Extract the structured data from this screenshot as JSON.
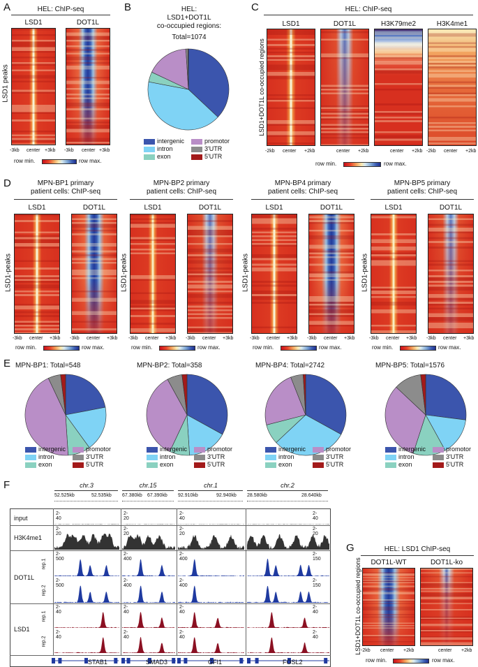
{
  "panel_labels": {
    "A": "A",
    "B": "B",
    "C": "C",
    "D": "D",
    "E": "E",
    "F": "F",
    "G": "G"
  },
  "common": {
    "row_min": "row min.",
    "row_max": "row max.",
    "tick_3kb_left": "-3kb",
    "tick_3kb_right": "+3kb",
    "tick_2kb_left": "-2kb",
    "tick_2kb_right": "+2kb",
    "center": "center",
    "lsd1": "LSD1",
    "dot1l": "DOT1L"
  },
  "legend": {
    "items": [
      {
        "label": "intergenic",
        "color": "#3b55ad"
      },
      {
        "label": "promotor",
        "color": "#b98ec7"
      },
      {
        "label": "intron",
        "color": "#7fd3f5"
      },
      {
        "label": "3'UTR",
        "color": "#8c8c8c"
      },
      {
        "label": "exon",
        "color": "#8ad1c0"
      },
      {
        "label": "5'UTR",
        "color": "#a31a1a"
      }
    ]
  },
  "panelA": {
    "title": "HEL: ChIP-seq",
    "ylabel": "LSD1 peaks"
  },
  "panelB": {
    "title_line1": "HEL:",
    "title_line2": "LSD1+DOT1L",
    "title_line3": "co-occupied regions:",
    "total": "Total=1074"
  },
  "panelC": {
    "title": "HEL: ChIP-seq",
    "ylabel": "LSD1+DOT1L co-occupied regions",
    "cols": [
      "LSD1",
      "DOT1L",
      "H3K79me2",
      "H3K4me1"
    ]
  },
  "panelD": {
    "ylabel": "LSD1-peaks",
    "groups": [
      {
        "line1": "MPN-BP1 primary",
        "line2": "patient cells: ChIP-seq"
      },
      {
        "line1": "MPN-BP2 primary",
        "line2": "patient cells: ChIP-seq"
      },
      {
        "line1": "MPN-BP4 primary",
        "line2": "patient cells: ChIP-seq"
      },
      {
        "line1": "MPN-BP5 primary",
        "line2": "patient cells: ChIP-seq"
      }
    ]
  },
  "panelE": {
    "titles": [
      "MPN-BP1: Total=548",
      "MPN-BP2: Total=358",
      "MPN-BP4: Total=2742",
      "MPN-BP5: Total=1576"
    ]
  },
  "panelF": {
    "chroms": [
      "chr.3",
      "chr.15",
      "chr.1",
      "chr.2"
    ],
    "coords": [
      "52.525kb",
      "52.535kb",
      "67.380kb",
      "67.390kb",
      "92.910kb",
      "92.940kb",
      "28.580kb",
      "28.640kb"
    ],
    "rows": {
      "input": "input",
      "h3k4me1": "H3K4me1",
      "dot1l": "DOT1L",
      "lsd1": "LSD1",
      "rep1": "rep.1",
      "rep2": "rep.2"
    },
    "scales": {
      "input": [
        "2-40",
        "2-20",
        "2-40",
        "2-40"
      ],
      "h3k4me1": [
        "2-20",
        "2-20",
        "2-20",
        "2-20"
      ],
      "dot1l_r1": [
        "2-500",
        "2-400",
        "2-400",
        "2-150"
      ],
      "dot1l_r2": [
        "2-500",
        "2-400",
        "2-400",
        "2-150"
      ],
      "lsd1_r1": [
        "2-40",
        "2-40",
        "2-40",
        "2-40"
      ],
      "lsd1_r2": [
        "2-40",
        "2-40",
        "2-40",
        "2-40"
      ]
    },
    "genes": [
      "STAB1",
      "SMAD3",
      "GFI1",
      "FOSL2"
    ]
  },
  "panelG": {
    "title": "HEL: LSD1 ChIP-seq",
    "ylabel": "LSD1+DOT1L co-occupied regions",
    "cols": [
      "DOT1L-WT",
      "DOT1L-ko"
    ]
  },
  "chart_data": [
    {
      "type": "pie",
      "title": "HEL: LSD1+DOT1L co-occupied regions: Total=1074",
      "categories": [
        "intergenic",
        "intron",
        "exon",
        "promotor",
        "3'UTR",
        "5'UTR"
      ],
      "values": [
        37,
        41,
        4,
        17,
        0.8,
        0.2
      ]
    },
    {
      "type": "pie",
      "title": "MPN-BP1: Total=548",
      "categories": [
        "intergenic",
        "intron",
        "exon",
        "promotor",
        "3'UTR",
        "5'UTR"
      ],
      "values": [
        22,
        18,
        9,
        44,
        5,
        2
      ]
    },
    {
      "type": "pie",
      "title": "MPN-BP2: Total=358",
      "categories": [
        "intergenic",
        "intron",
        "exon",
        "promotor",
        "3'UTR",
        "5'UTR"
      ],
      "values": [
        33,
        16,
        8,
        35,
        6,
        2
      ]
    },
    {
      "type": "pie",
      "title": "MPN-BP4: Total=2742",
      "categories": [
        "intergenic",
        "intron",
        "exon",
        "promotor",
        "3'UTR",
        "5'UTR"
      ],
      "values": [
        33,
        30,
        8,
        23,
        5,
        1
      ]
    },
    {
      "type": "pie",
      "title": "MPN-BP5: Total=1576",
      "categories": [
        "intergenic",
        "intron",
        "exon",
        "promotor",
        "3'UTR",
        "5'UTR"
      ],
      "values": [
        27,
        15,
        13,
        32,
        11,
        2
      ]
    }
  ]
}
